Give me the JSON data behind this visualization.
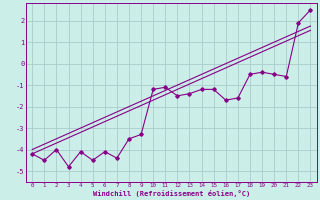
{
  "xlabel": "Windchill (Refroidissement éolien,°C)",
  "background_color": "#cceee8",
  "grid_color": "#aacccc",
  "line_color": "#880088",
  "xlim": [
    -0.5,
    23.5
  ],
  "ylim": [
    -5.5,
    2.8
  ],
  "xticks": [
    0,
    1,
    2,
    3,
    4,
    5,
    6,
    7,
    8,
    9,
    10,
    11,
    12,
    13,
    14,
    15,
    16,
    17,
    18,
    19,
    20,
    21,
    22,
    23
  ],
  "yticks": [
    -5,
    -4,
    -3,
    -2,
    -1,
    0,
    1,
    2
  ],
  "series_x": [
    0,
    1,
    2,
    3,
    4,
    5,
    6,
    7,
    8,
    9,
    10,
    11,
    12,
    13,
    14,
    15,
    16,
    17,
    18,
    19,
    20,
    21,
    22,
    23
  ],
  "series_data": [
    -4.2,
    -4.5,
    -4.0,
    -4.8,
    -4.1,
    -4.5,
    -4.1,
    -4.4,
    -3.5,
    -3.3,
    -1.2,
    -1.1,
    -1.5,
    -1.4,
    -1.2,
    -1.2,
    -1.7,
    -1.6,
    -0.5,
    -0.4,
    -0.5,
    -0.6,
    1.9,
    2.5
  ],
  "series_linear1": [
    -4.2,
    -3.95,
    -3.7,
    -3.45,
    -3.2,
    -2.95,
    -2.7,
    -2.45,
    -2.2,
    -1.95,
    -1.7,
    -1.45,
    -1.2,
    -0.95,
    -0.7,
    -0.45,
    -0.2,
    0.05,
    0.3,
    0.55,
    0.8,
    1.05,
    1.3,
    1.55
  ],
  "series_linear2": [
    -4.0,
    -3.75,
    -3.5,
    -3.25,
    -3.0,
    -2.75,
    -2.5,
    -2.25,
    -2.0,
    -1.75,
    -1.5,
    -1.25,
    -1.0,
    -0.75,
    -0.5,
    -0.25,
    0.0,
    0.25,
    0.5,
    0.75,
    1.0,
    1.25,
    1.5,
    1.75
  ]
}
